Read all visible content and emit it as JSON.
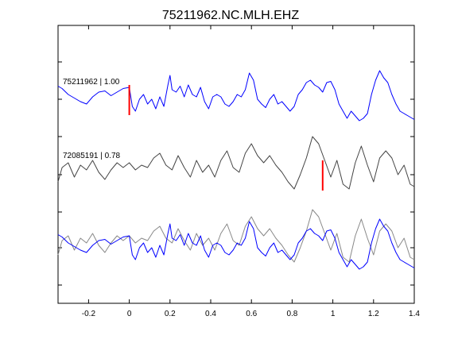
{
  "chart_data": {
    "type": "line",
    "title": "75211962.NC.MLH.EHZ",
    "xlabel": "",
    "ylabel": "",
    "xlim": [
      -0.35,
      1.4
    ],
    "x_ticks": [
      -0.2,
      0,
      0.2,
      0.4,
      0.6,
      0.8,
      1,
      1.2,
      1.4
    ],
    "x_tick_labels": [
      "-0.2",
      "0",
      "0.2",
      "0.4",
      "0.6",
      "0.8",
      "1",
      "1.2",
      "1.4"
    ],
    "grid": false,
    "legend": "none",
    "trace_labels": [
      "75211962 | 1.00",
      "72085191 | 0.78"
    ],
    "colors": {
      "primary": "#0000ff",
      "secondary": "#444444",
      "overlay_secondary": "#888888",
      "pick": "#ff0000"
    },
    "series": [
      {
        "trace": 1,
        "color": "#0000ff",
        "x": [
          -0.35,
          -0.33,
          -0.3,
          -0.27,
          -0.24,
          -0.21,
          -0.18,
          -0.15,
          -0.12,
          -0.09,
          -0.06,
          -0.03,
          0,
          0.015,
          0.03,
          0.05,
          0.07,
          0.09,
          0.11,
          0.13,
          0.15,
          0.17,
          0.19,
          0.2,
          0.21,
          0.23,
          0.25,
          0.27,
          0.29,
          0.31,
          0.33,
          0.35,
          0.37,
          0.39,
          0.41,
          0.43,
          0.45,
          0.47,
          0.49,
          0.51,
          0.53,
          0.55,
          0.57,
          0.59,
          0.61,
          0.63,
          0.65,
          0.67,
          0.69,
          0.71,
          0.73,
          0.75,
          0.77,
          0.79,
          0.81,
          0.83,
          0.85,
          0.87,
          0.89,
          0.91,
          0.93,
          0.95,
          0.97,
          0.99,
          1.01,
          1.03,
          1.05,
          1.07,
          1.09,
          1.11,
          1.13,
          1.15,
          1.17,
          1.19,
          1.21,
          1.23,
          1.25,
          1.27,
          1.29,
          1.31,
          1.33,
          1.35,
          1.37,
          1.39,
          1.4
        ],
        "y": [
          0.55,
          0.45,
          0.2,
          0.05,
          -0.1,
          -0.2,
          0.1,
          0.3,
          0.35,
          0.15,
          0.3,
          0.45,
          0.5,
          -0.3,
          -0.5,
          0.0,
          0.2,
          -0.2,
          0.0,
          -0.4,
          0.1,
          -0.3,
          0.6,
          1.0,
          0.4,
          0.3,
          0.55,
          0.1,
          0.6,
          0.2,
          0.1,
          0.5,
          -0.1,
          -0.4,
          0.1,
          0.2,
          0.1,
          -0.2,
          -0.3,
          -0.1,
          0.2,
          0.1,
          0.4,
          1.1,
          0.8,
          0.0,
          -0.2,
          -0.35,
          0.0,
          0.2,
          -0.2,
          -0.1,
          -0.3,
          -0.5,
          -0.3,
          0.2,
          0.4,
          0.7,
          0.8,
          0.6,
          0.5,
          0.3,
          0.7,
          0.75,
          0.4,
          -0.2,
          -0.5,
          -0.8,
          -0.5,
          -0.7,
          -0.9,
          -0.8,
          -0.6,
          0.2,
          0.8,
          1.2,
          0.9,
          0.7,
          0.2,
          -0.2,
          -0.5,
          -0.6,
          -0.7,
          -0.8,
          -0.85
        ]
      },
      {
        "trace": 2,
        "color": "#444444",
        "x": [
          -0.35,
          -0.33,
          -0.3,
          -0.27,
          -0.24,
          -0.21,
          -0.18,
          -0.15,
          -0.12,
          -0.09,
          -0.06,
          -0.03,
          0,
          0.03,
          0.06,
          0.09,
          0.12,
          0.15,
          0.18,
          0.21,
          0.24,
          0.27,
          0.3,
          0.33,
          0.36,
          0.39,
          0.42,
          0.45,
          0.48,
          0.51,
          0.54,
          0.57,
          0.6,
          0.63,
          0.66,
          0.69,
          0.72,
          0.75,
          0.78,
          0.81,
          0.84,
          0.87,
          0.9,
          0.93,
          0.96,
          0.99,
          1.02,
          1.05,
          1.08,
          1.11,
          1.14,
          1.17,
          1.2,
          1.23,
          1.26,
          1.29,
          1.32,
          1.35,
          1.38,
          1.4
        ],
        "y": [
          -0.3,
          0.3,
          0.5,
          -0.1,
          0.4,
          0.2,
          0.6,
          0.1,
          -0.2,
          0.2,
          0.5,
          0.3,
          0.5,
          0.2,
          0.4,
          0.3,
          0.7,
          0.9,
          0.4,
          0.2,
          0.8,
          0.3,
          -0.1,
          0.6,
          0.1,
          0.4,
          -0.1,
          0.6,
          1.0,
          0.3,
          0.1,
          0.9,
          1.3,
          0.8,
          0.5,
          0.8,
          0.4,
          0.1,
          -0.3,
          -0.6,
          0.0,
          0.7,
          1.6,
          1.3,
          0.6,
          -0.1,
          0.6,
          -0.4,
          -0.6,
          0.5,
          1.2,
          0.4,
          -0.3,
          0.7,
          1.0,
          0.7,
          0.0,
          0.4,
          -0.4,
          -0.5
        ]
      },
      {
        "trace": 3,
        "color": "#888888",
        "x": [
          -0.35,
          -0.33,
          -0.3,
          -0.27,
          -0.24,
          -0.21,
          -0.18,
          -0.15,
          -0.12,
          -0.09,
          -0.06,
          -0.03,
          0,
          0.03,
          0.06,
          0.09,
          0.12,
          0.15,
          0.18,
          0.21,
          0.24,
          0.27,
          0.3,
          0.33,
          0.36,
          0.39,
          0.42,
          0.45,
          0.48,
          0.51,
          0.54,
          0.57,
          0.6,
          0.63,
          0.66,
          0.69,
          0.72,
          0.75,
          0.78,
          0.81,
          0.84,
          0.87,
          0.9,
          0.93,
          0.96,
          0.99,
          1.02,
          1.05,
          1.08,
          1.11,
          1.14,
          1.17,
          1.2,
          1.23,
          1.26,
          1.29,
          1.32,
          1.35,
          1.38,
          1.4
        ],
        "y": [
          -0.3,
          0.3,
          0.5,
          -0.1,
          0.4,
          0.2,
          0.6,
          0.1,
          -0.2,
          0.2,
          0.5,
          0.3,
          0.5,
          0.2,
          0.4,
          0.3,
          0.7,
          0.9,
          0.4,
          0.2,
          0.8,
          0.3,
          -0.1,
          0.6,
          0.1,
          0.4,
          -0.1,
          0.6,
          1.0,
          0.3,
          0.1,
          0.9,
          1.3,
          0.8,
          0.5,
          0.8,
          0.4,
          0.1,
          -0.3,
          -0.6,
          0.0,
          0.7,
          1.6,
          1.3,
          0.6,
          -0.1,
          0.6,
          -0.4,
          -0.6,
          0.5,
          1.2,
          0.4,
          -0.3,
          0.7,
          1.0,
          0.7,
          0.0,
          0.4,
          -0.4,
          -0.5
        ]
      },
      {
        "trace": 3,
        "color": "#0000ff",
        "x": [
          -0.35,
          -0.33,
          -0.3,
          -0.27,
          -0.24,
          -0.21,
          -0.18,
          -0.15,
          -0.12,
          -0.09,
          -0.06,
          -0.03,
          0,
          0.015,
          0.03,
          0.05,
          0.07,
          0.09,
          0.11,
          0.13,
          0.15,
          0.17,
          0.19,
          0.2,
          0.21,
          0.23,
          0.25,
          0.27,
          0.29,
          0.31,
          0.33,
          0.35,
          0.37,
          0.39,
          0.41,
          0.43,
          0.45,
          0.47,
          0.49,
          0.51,
          0.53,
          0.55,
          0.57,
          0.59,
          0.61,
          0.63,
          0.65,
          0.67,
          0.69,
          0.71,
          0.73,
          0.75,
          0.77,
          0.79,
          0.81,
          0.83,
          0.85,
          0.87,
          0.89,
          0.91,
          0.93,
          0.95,
          0.97,
          0.99,
          1.01,
          1.03,
          1.05,
          1.07,
          1.09,
          1.11,
          1.13,
          1.15,
          1.17,
          1.19,
          1.21,
          1.23,
          1.25,
          1.27,
          1.29,
          1.31,
          1.33,
          1.35,
          1.37,
          1.39,
          1.4
        ],
        "y": [
          0.55,
          0.45,
          0.2,
          0.05,
          -0.1,
          -0.2,
          0.1,
          0.3,
          0.35,
          0.15,
          0.3,
          0.45,
          0.5,
          -0.3,
          -0.5,
          0.0,
          0.2,
          -0.2,
          0.0,
          -0.4,
          0.1,
          -0.3,
          0.6,
          1.0,
          0.4,
          0.3,
          0.55,
          0.1,
          0.6,
          0.2,
          0.1,
          0.5,
          -0.1,
          -0.4,
          0.1,
          0.2,
          0.1,
          -0.2,
          -0.3,
          -0.1,
          0.2,
          0.1,
          0.4,
          1.1,
          0.8,
          0.0,
          -0.2,
          -0.35,
          0.0,
          0.2,
          -0.2,
          -0.1,
          -0.3,
          -0.5,
          -0.3,
          0.2,
          0.4,
          0.7,
          0.8,
          0.6,
          0.5,
          0.3,
          0.7,
          0.75,
          0.4,
          -0.2,
          -0.5,
          -0.8,
          -0.5,
          -0.7,
          -0.9,
          -0.8,
          -0.6,
          0.2,
          0.8,
          1.2,
          0.9,
          0.7,
          0.2,
          -0.2,
          -0.5,
          -0.6,
          -0.7,
          -0.8,
          -0.85
        ]
      }
    ],
    "picks": [
      {
        "trace": 1,
        "x": 0.0
      },
      {
        "trace": 2,
        "x": 0.95
      }
    ]
  }
}
